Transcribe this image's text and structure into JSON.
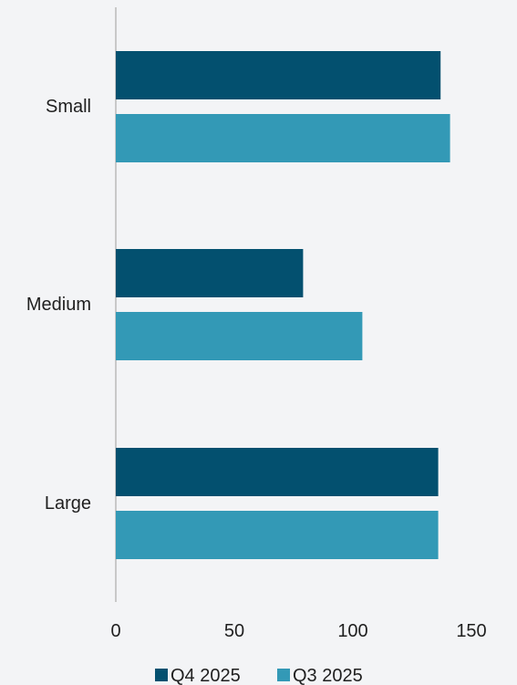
{
  "chart_data": {
    "type": "bar",
    "orientation": "horizontal",
    "categories": [
      "Small",
      "Medium",
      "Large"
    ],
    "series": [
      {
        "name": "Q4 2025",
        "color": "#03506f",
        "values": [
          137,
          79,
          136
        ]
      },
      {
        "name": "Q3 2025",
        "color": "#3399b6",
        "values": [
          141,
          104,
          136
        ]
      }
    ],
    "xlim": [
      0,
      150
    ],
    "xticks": [
      0,
      50,
      100,
      150
    ],
    "grid": false,
    "legend_position": "bottom",
    "title": "",
    "xlabel": "",
    "ylabel": ""
  }
}
